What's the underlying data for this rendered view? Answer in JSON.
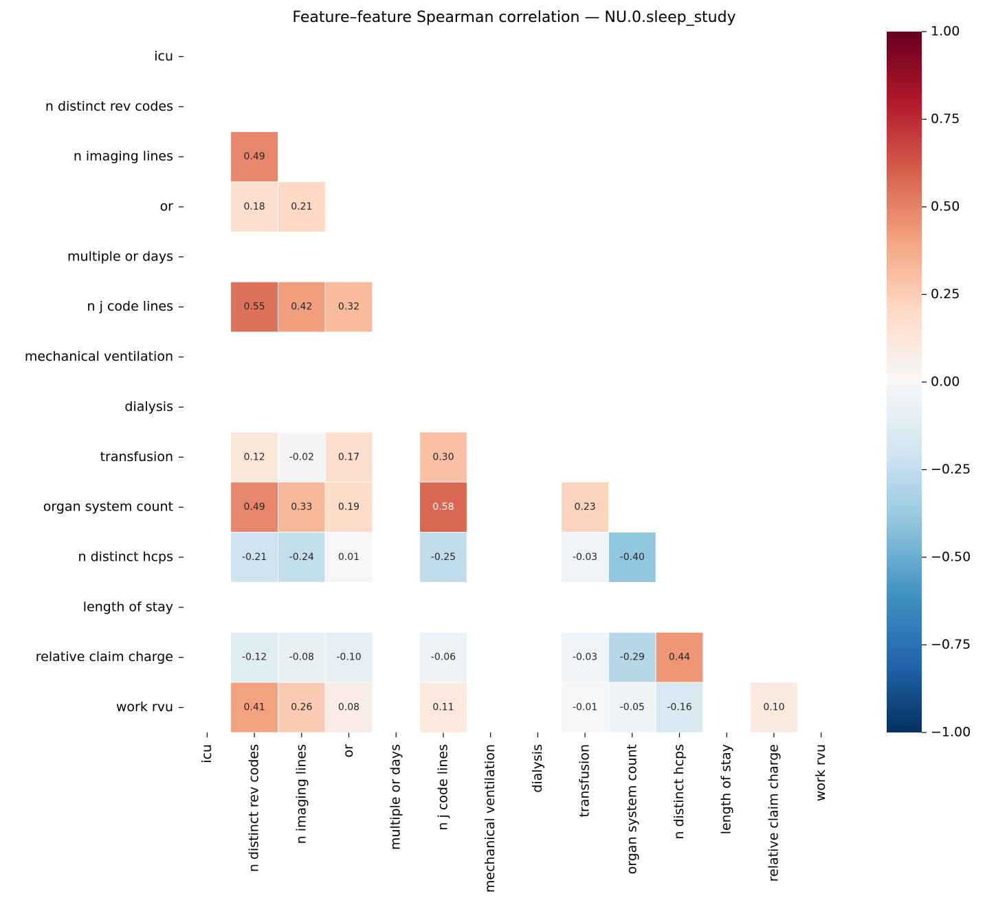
{
  "chart_data": {
    "type": "heatmap",
    "title": "Feature–feature Spearman correlation — NU.0.sleep_study",
    "categories": [
      "icu",
      "n distinct rev codes",
      "n imaging lines",
      "or",
      "multiple or days",
      "n j code lines",
      "mechanical ventilation",
      "dialysis",
      "transfusion",
      "organ system count",
      "n distinct hcps",
      "length of stay",
      "relative claim charge",
      "work rvu"
    ],
    "matrix": [
      [
        null,
        null,
        null,
        null,
        null,
        null,
        null,
        null,
        null,
        null,
        null,
        null,
        null,
        null
      ],
      [
        null,
        null,
        null,
        null,
        null,
        null,
        null,
        null,
        null,
        null,
        null,
        null,
        null,
        null
      ],
      [
        null,
        0.49,
        null,
        null,
        null,
        null,
        null,
        null,
        null,
        null,
        null,
        null,
        null,
        null
      ],
      [
        null,
        0.18,
        0.21,
        null,
        null,
        null,
        null,
        null,
        null,
        null,
        null,
        null,
        null,
        null
      ],
      [
        null,
        null,
        null,
        null,
        null,
        null,
        null,
        null,
        null,
        null,
        null,
        null,
        null,
        null
      ],
      [
        null,
        0.55,
        0.42,
        0.32,
        null,
        null,
        null,
        null,
        null,
        null,
        null,
        null,
        null,
        null
      ],
      [
        null,
        null,
        null,
        null,
        null,
        null,
        null,
        null,
        null,
        null,
        null,
        null,
        null,
        null
      ],
      [
        null,
        null,
        null,
        null,
        null,
        null,
        null,
        null,
        null,
        null,
        null,
        null,
        null,
        null
      ],
      [
        null,
        0.12,
        -0.02,
        0.17,
        null,
        0.3,
        null,
        null,
        null,
        null,
        null,
        null,
        null,
        null
      ],
      [
        null,
        0.49,
        0.33,
        0.19,
        null,
        0.58,
        null,
        null,
        0.23,
        null,
        null,
        null,
        null,
        null
      ],
      [
        null,
        -0.21,
        -0.24,
        0.01,
        null,
        -0.25,
        null,
        null,
        -0.03,
        -0.4,
        null,
        null,
        null,
        null
      ],
      [
        null,
        null,
        null,
        null,
        null,
        null,
        null,
        null,
        null,
        null,
        null,
        null,
        null,
        null
      ],
      [
        null,
        -0.12,
        -0.08,
        -0.1,
        null,
        -0.06,
        null,
        null,
        -0.03,
        -0.29,
        0.44,
        null,
        null,
        null
      ],
      [
        null,
        0.41,
        0.26,
        0.08,
        null,
        0.11,
        null,
        null,
        -0.01,
        -0.05,
        -0.16,
        null,
        0.1,
        null
      ]
    ],
    "value_labels": [
      [
        null,
        null,
        null,
        null,
        null,
        null,
        null,
        null,
        null,
        null,
        null,
        null,
        null,
        null
      ],
      [
        null,
        null,
        null,
        null,
        null,
        null,
        null,
        null,
        null,
        null,
        null,
        null,
        null,
        null
      ],
      [
        null,
        "0.49",
        null,
        null,
        null,
        null,
        null,
        null,
        null,
        null,
        null,
        null,
        null,
        null
      ],
      [
        null,
        "0.18",
        "0.21",
        null,
        null,
        null,
        null,
        null,
        null,
        null,
        null,
        null,
        null,
        null
      ],
      [
        null,
        null,
        null,
        null,
        null,
        null,
        null,
        null,
        null,
        null,
        null,
        null,
        null,
        null
      ],
      [
        null,
        "0.55",
        "0.42",
        "0.32",
        null,
        null,
        null,
        null,
        null,
        null,
        null,
        null,
        null,
        null
      ],
      [
        null,
        null,
        null,
        null,
        null,
        null,
        null,
        null,
        null,
        null,
        null,
        null,
        null,
        null
      ],
      [
        null,
        null,
        null,
        null,
        null,
        null,
        null,
        null,
        null,
        null,
        null,
        null,
        null,
        null
      ],
      [
        null,
        "0.12",
        "-0.02",
        "0.17",
        null,
        "0.30",
        null,
        null,
        null,
        null,
        null,
        null,
        null,
        null
      ],
      [
        null,
        "0.49",
        "0.33",
        "0.19",
        null,
        "0.58",
        null,
        null,
        "0.23",
        null,
        null,
        null,
        null,
        null
      ],
      [
        null,
        "-0.21",
        "-0.24",
        "0.01",
        null,
        "-0.25",
        null,
        null,
        "-0.03",
        "-0.40",
        null,
        null,
        null,
        null
      ],
      [
        null,
        null,
        null,
        null,
        null,
        null,
        null,
        null,
        null,
        null,
        null,
        null,
        null,
        null
      ],
      [
        null,
        "-0.12",
        "-0.08",
        "-0.10",
        null,
        "-0.06",
        null,
        null,
        "-0.03",
        "-0.29",
        "0.44",
        null,
        null,
        null
      ],
      [
        null,
        "0.41",
        "0.26",
        "0.08",
        null,
        "0.11",
        null,
        null,
        "-0.01",
        "-0.05",
        "-0.16",
        null,
        "0.10",
        null
      ]
    ],
    "colorscale": [
      "#053061",
      "#2166ac",
      "#4393c3",
      "#92c5de",
      "#d1e5f0",
      "#f7f7f7",
      "#fddbc7",
      "#f4a582",
      "#d6604d",
      "#b2182b",
      "#67001f"
    ],
    "clim": [
      -1,
      1
    ],
    "cticks": [
      {
        "value": 1,
        "label": "1.00"
      },
      {
        "value": 0.75,
        "label": "0.75"
      },
      {
        "value": 0.5,
        "label": "0.50"
      },
      {
        "value": 0.25,
        "label": "0.25"
      },
      {
        "value": 0,
        "label": "0.00"
      },
      {
        "value": -0.25,
        "label": "−0.25"
      },
      {
        "value": -0.5,
        "label": "−0.50"
      },
      {
        "value": -0.75,
        "label": "−0.75"
      },
      {
        "value": -1,
        "label": "−1.00"
      }
    ]
  }
}
